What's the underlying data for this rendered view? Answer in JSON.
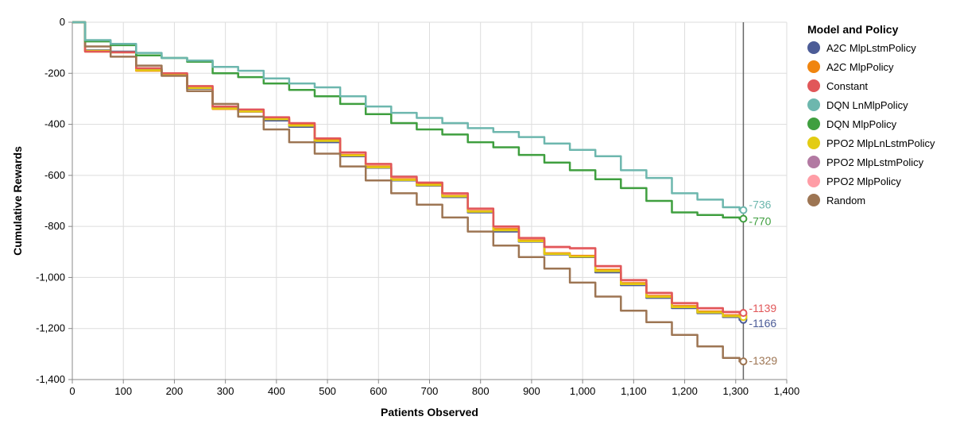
{
  "chart_data": {
    "type": "line",
    "xlabel": "Patients Observed",
    "ylabel": "Cumulative Rewards",
    "xlim": [
      0,
      1400
    ],
    "ylim": [
      -1400,
      0
    ],
    "x_ticks": [
      "0",
      "100",
      "200",
      "300",
      "400",
      "500",
      "600",
      "700",
      "800",
      "900",
      "1,000",
      "1,100",
      "1,200",
      "1,300",
      "1,400"
    ],
    "y_ticks": [
      "0",
      "-200",
      "-400",
      "-600",
      "-800",
      "-1,000",
      "-1,200",
      "-1,400"
    ],
    "grid": true,
    "legend_title": "Model and Policy",
    "legend_position": "right",
    "rule_x": 1315,
    "series": [
      {
        "name": "A2C MlpLstmPolicy",
        "color": "#4c5c97",
        "points": [
          [
            0,
            0
          ],
          [
            50,
            -110
          ],
          [
            100,
            -115
          ],
          [
            150,
            -185
          ],
          [
            200,
            -205
          ],
          [
            250,
            -260
          ],
          [
            300,
            -335
          ],
          [
            350,
            -350
          ],
          [
            400,
            -385
          ],
          [
            450,
            -410
          ],
          [
            500,
            -470
          ],
          [
            550,
            -525
          ],
          [
            600,
            -570
          ],
          [
            650,
            -620
          ],
          [
            700,
            -640
          ],
          [
            750,
            -685
          ],
          [
            800,
            -745
          ],
          [
            850,
            -820
          ],
          [
            900,
            -860
          ],
          [
            950,
            -910
          ],
          [
            1000,
            -920
          ],
          [
            1050,
            -980
          ],
          [
            1100,
            -1030
          ],
          [
            1150,
            -1080
          ],
          [
            1200,
            -1120
          ],
          [
            1250,
            -1140
          ],
          [
            1300,
            -1155
          ],
          [
            1315,
            -1166
          ]
        ],
        "end_label": "-1166"
      },
      {
        "name": "A2C MlpPolicy",
        "color": "#f0850f",
        "points": [
          [
            0,
            0
          ],
          [
            50,
            -115
          ],
          [
            100,
            -118
          ],
          [
            150,
            -190
          ],
          [
            200,
            -205
          ],
          [
            250,
            -258
          ],
          [
            300,
            -340
          ],
          [
            350,
            -350
          ],
          [
            400,
            -378
          ],
          [
            450,
            -402
          ],
          [
            500,
            -462
          ],
          [
            550,
            -520
          ],
          [
            600,
            -565
          ],
          [
            650,
            -615
          ],
          [
            700,
            -635
          ],
          [
            750,
            -680
          ],
          [
            800,
            -740
          ],
          [
            850,
            -810
          ],
          [
            900,
            -855
          ],
          [
            950,
            -905
          ],
          [
            1000,
            -915
          ],
          [
            1050,
            -970
          ],
          [
            1100,
            -1022
          ],
          [
            1150,
            -1072
          ],
          [
            1200,
            -1112
          ],
          [
            1250,
            -1133
          ],
          [
            1300,
            -1148
          ],
          [
            1315,
            -1150
          ]
        ],
        "end_label": ""
      },
      {
        "name": "Constant",
        "color": "#e15759",
        "points": [
          [
            0,
            0
          ],
          [
            50,
            -115
          ],
          [
            100,
            -118
          ],
          [
            150,
            -180
          ],
          [
            200,
            -200
          ],
          [
            250,
            -250
          ],
          [
            300,
            -330
          ],
          [
            350,
            -342
          ],
          [
            400,
            -372
          ],
          [
            450,
            -395
          ],
          [
            500,
            -455
          ],
          [
            550,
            -510
          ],
          [
            600,
            -555
          ],
          [
            650,
            -605
          ],
          [
            700,
            -628
          ],
          [
            750,
            -670
          ],
          [
            800,
            -730
          ],
          [
            850,
            -800
          ],
          [
            900,
            -845
          ],
          [
            950,
            -880
          ],
          [
            1000,
            -885
          ],
          [
            1050,
            -955
          ],
          [
            1100,
            -1010
          ],
          [
            1150,
            -1060
          ],
          [
            1200,
            -1100
          ],
          [
            1250,
            -1120
          ],
          [
            1300,
            -1135
          ],
          [
            1315,
            -1139
          ]
        ],
        "end_label": "-1139"
      },
      {
        "name": "DQN LnMlpPolicy",
        "color": "#6db7ae",
        "points": [
          [
            0,
            0
          ],
          [
            50,
            -70
          ],
          [
            100,
            -85
          ],
          [
            150,
            -120
          ],
          [
            200,
            -140
          ],
          [
            250,
            -150
          ],
          [
            300,
            -175
          ],
          [
            350,
            -190
          ],
          [
            400,
            -220
          ],
          [
            450,
            -240
          ],
          [
            500,
            -255
          ],
          [
            550,
            -290
          ],
          [
            600,
            -330
          ],
          [
            650,
            -355
          ],
          [
            700,
            -375
          ],
          [
            750,
            -395
          ],
          [
            800,
            -415
          ],
          [
            850,
            -430
          ],
          [
            900,
            -450
          ],
          [
            950,
            -475
          ],
          [
            1000,
            -500
          ],
          [
            1050,
            -525
          ],
          [
            1100,
            -580
          ],
          [
            1150,
            -610
          ],
          [
            1200,
            -670
          ],
          [
            1250,
            -695
          ],
          [
            1300,
            -725
          ],
          [
            1315,
            -736
          ]
        ],
        "end_label": "-736"
      },
      {
        "name": "DQN MlpPolicy",
        "color": "#3f9f3f",
        "points": [
          [
            0,
            0
          ],
          [
            50,
            -75
          ],
          [
            100,
            -90
          ],
          [
            150,
            -130
          ],
          [
            200,
            -140
          ],
          [
            250,
            -155
          ],
          [
            300,
            -200
          ],
          [
            350,
            -215
          ],
          [
            400,
            -240
          ],
          [
            450,
            -265
          ],
          [
            500,
            -290
          ],
          [
            550,
            -320
          ],
          [
            600,
            -360
          ],
          [
            650,
            -395
          ],
          [
            700,
            -420
          ],
          [
            750,
            -440
          ],
          [
            800,
            -470
          ],
          [
            850,
            -490
          ],
          [
            900,
            -520
          ],
          [
            950,
            -550
          ],
          [
            1000,
            -580
          ],
          [
            1050,
            -615
          ],
          [
            1100,
            -650
          ],
          [
            1150,
            -700
          ],
          [
            1200,
            -745
          ],
          [
            1250,
            -755
          ],
          [
            1300,
            -765
          ],
          [
            1315,
            -770
          ]
        ],
        "end_label": "-770"
      },
      {
        "name": "PPO2 MlpLnLstmPolicy",
        "color": "#e3cc13",
        "points": [
          [
            0,
            0
          ],
          [
            50,
            -112
          ],
          [
            100,
            -118
          ],
          [
            150,
            -188
          ],
          [
            200,
            -204
          ],
          [
            250,
            -258
          ],
          [
            300,
            -338
          ],
          [
            350,
            -349
          ],
          [
            400,
            -380
          ],
          [
            450,
            -405
          ],
          [
            500,
            -465
          ],
          [
            550,
            -522
          ],
          [
            600,
            -568
          ],
          [
            650,
            -618
          ],
          [
            700,
            -638
          ],
          [
            750,
            -682
          ],
          [
            800,
            -742
          ],
          [
            850,
            -815
          ],
          [
            900,
            -858
          ],
          [
            950,
            -908
          ],
          [
            1000,
            -918
          ],
          [
            1050,
            -975
          ],
          [
            1100,
            -1026
          ],
          [
            1150,
            -1076
          ],
          [
            1200,
            -1116
          ],
          [
            1250,
            -1137
          ],
          [
            1300,
            -1152
          ],
          [
            1315,
            -1155
          ]
        ],
        "end_label": ""
      },
      {
        "name": "PPO2 MlpLstmPolicy",
        "color": "#b279a2",
        "points": [
          [
            0,
            0
          ],
          [
            50,
            -113
          ],
          [
            100,
            -117
          ],
          [
            150,
            -187
          ],
          [
            200,
            -203
          ],
          [
            250,
            -259
          ],
          [
            300,
            -336
          ],
          [
            350,
            -350
          ],
          [
            400,
            -382
          ],
          [
            450,
            -407
          ],
          [
            500,
            -467
          ],
          [
            550,
            -523
          ],
          [
            600,
            -569
          ],
          [
            650,
            -619
          ],
          [
            700,
            -639
          ],
          [
            750,
            -683
          ],
          [
            800,
            -743
          ],
          [
            850,
            -817
          ],
          [
            900,
            -859
          ],
          [
            950,
            -909
          ],
          [
            1000,
            -919
          ],
          [
            1050,
            -977
          ],
          [
            1100,
            -1028
          ],
          [
            1150,
            -1078
          ],
          [
            1200,
            -1118
          ],
          [
            1250,
            -1138
          ],
          [
            1300,
            -1153
          ],
          [
            1315,
            -1158
          ]
        ],
        "end_label": ""
      },
      {
        "name": "PPO2 MlpPolicy",
        "color": "#ff9da6",
        "points": [
          [
            0,
            0
          ],
          [
            50,
            -114
          ],
          [
            100,
            -117
          ],
          [
            150,
            -182
          ],
          [
            200,
            -201
          ],
          [
            250,
            -252
          ],
          [
            300,
            -332
          ],
          [
            350,
            -344
          ],
          [
            400,
            -374
          ],
          [
            450,
            -397
          ],
          [
            500,
            -457
          ],
          [
            550,
            -512
          ],
          [
            600,
            -557
          ],
          [
            650,
            -607
          ],
          [
            700,
            -630
          ],
          [
            750,
            -672
          ],
          [
            800,
            -732
          ],
          [
            850,
            -802
          ],
          [
            900,
            -847
          ],
          [
            950,
            -882
          ],
          [
            1000,
            -887
          ],
          [
            1050,
            -957
          ],
          [
            1100,
            -1012
          ],
          [
            1150,
            -1062
          ],
          [
            1200,
            -1102
          ],
          [
            1250,
            -1122
          ],
          [
            1300,
            -1137
          ],
          [
            1315,
            -1142
          ]
        ],
        "end_label": ""
      },
      {
        "name": "Random",
        "color": "#9d7553",
        "points": [
          [
            0,
            0
          ],
          [
            50,
            -95
          ],
          [
            100,
            -135
          ],
          [
            150,
            -170
          ],
          [
            200,
            -210
          ],
          [
            250,
            -270
          ],
          [
            300,
            -320
          ],
          [
            350,
            -370
          ],
          [
            400,
            -420
          ],
          [
            450,
            -470
          ],
          [
            500,
            -515
          ],
          [
            550,
            -565
          ],
          [
            600,
            -620
          ],
          [
            650,
            -670
          ],
          [
            700,
            -715
          ],
          [
            750,
            -765
          ],
          [
            800,
            -820
          ],
          [
            850,
            -875
          ],
          [
            900,
            -920
          ],
          [
            950,
            -965
          ],
          [
            1000,
            -1020
          ],
          [
            1050,
            -1075
          ],
          [
            1100,
            -1130
          ],
          [
            1150,
            -1175
          ],
          [
            1200,
            -1225
          ],
          [
            1250,
            -1270
          ],
          [
            1300,
            -1315
          ],
          [
            1315,
            -1329
          ]
        ],
        "end_label": "-1329"
      }
    ]
  }
}
